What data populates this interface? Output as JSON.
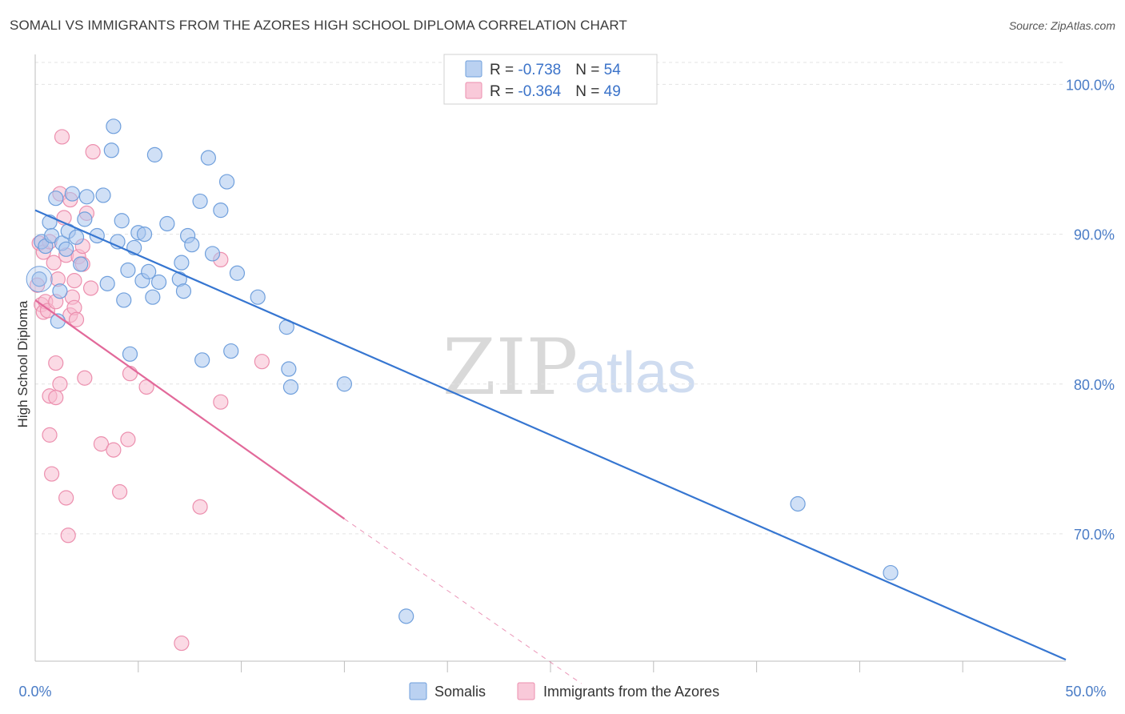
{
  "title": "SOMALI VS IMMIGRANTS FROM THE AZORES HIGH SCHOOL DIPLOMA CORRELATION CHART",
  "source": "Source: ZipAtlas.com",
  "colors": {
    "somali": "#a9c6ee",
    "somali_stroke": "#6f9fdc",
    "somali_line": "#3676d1",
    "azores": "#f7bcd0",
    "azores_stroke": "#ec8fae",
    "azores_line": "#e2699a",
    "tick": "#4a7cc6",
    "grid": "#e3e3e3"
  },
  "legend": {
    "rows": [
      {
        "r_label": "R = ",
        "r_value": "-0.738",
        "n_label": "N = ",
        "n_value": "54"
      },
      {
        "r_label": "R = ",
        "r_value": "-0.364",
        "n_label": "N = ",
        "n_value": "49"
      }
    ]
  },
  "bottom_legend": [
    "Somalis",
    "Immigrants from the Azores"
  ],
  "watermark": {
    "zip": "ZIP",
    "atlas": "atlas"
  },
  "chart_data": {
    "type": "scatter",
    "title": "SOMALI VS IMMIGRANTS FROM THE AZORES HIGH SCHOOL DIPLOMA CORRELATION CHART",
    "xlabel": "",
    "ylabel": "High School Diploma",
    "xlim": [
      0,
      50
    ],
    "ylim": [
      61.5,
      102
    ],
    "x_tick_labels": [
      "0.0%",
      "50.0%"
    ],
    "y_ticks": [
      70,
      80,
      90,
      100
    ],
    "y_tick_labels": [
      "70.0%",
      "80.0%",
      "90.0%",
      "100.0%"
    ],
    "grid": true,
    "legend_position": "top-center",
    "series": [
      {
        "name": "Somalis",
        "r": -0.738,
        "n": 54,
        "trend": {
          "x": [
            0,
            50
          ],
          "y": [
            91.6,
            61.6
          ]
        },
        "points": [
          [
            0.2,
            87.0
          ],
          [
            0.3,
            89.5
          ],
          [
            0.5,
            89.2
          ],
          [
            0.7,
            90.8
          ],
          [
            0.8,
            89.9
          ],
          [
            1.0,
            92.4
          ],
          [
            1.1,
            84.2
          ],
          [
            1.2,
            86.2
          ],
          [
            1.3,
            89.4
          ],
          [
            1.5,
            89.0
          ],
          [
            1.6,
            90.2
          ],
          [
            1.8,
            92.7
          ],
          [
            2.0,
            89.8
          ],
          [
            2.2,
            88.0
          ],
          [
            2.4,
            91.0
          ],
          [
            2.5,
            92.5
          ],
          [
            3.0,
            89.9
          ],
          [
            3.3,
            92.6
          ],
          [
            3.5,
            86.7
          ],
          [
            3.7,
            95.6
          ],
          [
            3.8,
            97.2
          ],
          [
            4.0,
            89.5
          ],
          [
            4.2,
            90.9
          ],
          [
            4.3,
            85.6
          ],
          [
            4.5,
            87.6
          ],
          [
            4.6,
            82.0
          ],
          [
            4.8,
            89.1
          ],
          [
            5.0,
            90.1
          ],
          [
            5.2,
            86.9
          ],
          [
            5.3,
            90.0
          ],
          [
            5.5,
            87.5
          ],
          [
            5.7,
            85.8
          ],
          [
            5.8,
            95.3
          ],
          [
            6.0,
            86.8
          ],
          [
            6.4,
            90.7
          ],
          [
            7.0,
            87.0
          ],
          [
            7.1,
            88.1
          ],
          [
            7.2,
            86.2
          ],
          [
            7.4,
            89.9
          ],
          [
            7.6,
            89.3
          ],
          [
            8.0,
            92.2
          ],
          [
            8.1,
            81.6
          ],
          [
            8.4,
            95.1
          ],
          [
            8.6,
            88.7
          ],
          [
            9.0,
            91.6
          ],
          [
            9.3,
            93.5
          ],
          [
            9.5,
            82.2
          ],
          [
            9.8,
            87.4
          ],
          [
            10.8,
            85.8
          ],
          [
            12.2,
            83.8
          ],
          [
            12.3,
            81.0
          ],
          [
            12.4,
            79.8
          ],
          [
            15.0,
            80.0
          ],
          [
            18.0,
            64.5
          ],
          [
            37.0,
            72.0
          ],
          [
            41.5,
            67.4
          ]
        ]
      },
      {
        "name": "Immigrants from the Azores",
        "r": -0.364,
        "n": 49,
        "trend": {
          "x": [
            0,
            15
          ],
          "y": [
            85.6,
            71.0
          ]
        },
        "trend_dashed": {
          "x": [
            15,
            26.5
          ],
          "y": [
            71.0,
            60.0
          ]
        },
        "points": [
          [
            0.1,
            86.6
          ],
          [
            0.2,
            89.4
          ],
          [
            0.3,
            85.3
          ],
          [
            0.4,
            84.8
          ],
          [
            0.4,
            88.8
          ],
          [
            0.5,
            85.5
          ],
          [
            0.6,
            84.9
          ],
          [
            0.7,
            89.5
          ],
          [
            0.7,
            79.2
          ],
          [
            0.7,
            76.6
          ],
          [
            0.8,
            74.0
          ],
          [
            0.9,
            88.1
          ],
          [
            1.0,
            85.5
          ],
          [
            1.0,
            79.1
          ],
          [
            1.0,
            81.4
          ],
          [
            1.1,
            87.0
          ],
          [
            1.2,
            80.0
          ],
          [
            1.2,
            92.7
          ],
          [
            1.3,
            96.5
          ],
          [
            1.4,
            91.1
          ],
          [
            1.5,
            72.4
          ],
          [
            1.5,
            88.6
          ],
          [
            1.6,
            69.9
          ],
          [
            1.7,
            84.6
          ],
          [
            1.7,
            92.3
          ],
          [
            1.8,
            85.8
          ],
          [
            1.9,
            86.9
          ],
          [
            1.9,
            85.1
          ],
          [
            2.0,
            84.3
          ],
          [
            2.1,
            88.5
          ],
          [
            2.3,
            88.0
          ],
          [
            2.3,
            89.2
          ],
          [
            2.4,
            80.4
          ],
          [
            2.5,
            91.4
          ],
          [
            2.7,
            86.4
          ],
          [
            2.8,
            95.5
          ],
          [
            3.2,
            76.0
          ],
          [
            3.8,
            75.6
          ],
          [
            4.1,
            72.8
          ],
          [
            4.5,
            76.3
          ],
          [
            4.6,
            80.7
          ],
          [
            5.4,
            79.8
          ],
          [
            7.1,
            62.7
          ],
          [
            8.0,
            71.8
          ],
          [
            9.0,
            88.3
          ],
          [
            9.0,
            78.8
          ],
          [
            11.0,
            81.5
          ]
        ]
      }
    ]
  }
}
